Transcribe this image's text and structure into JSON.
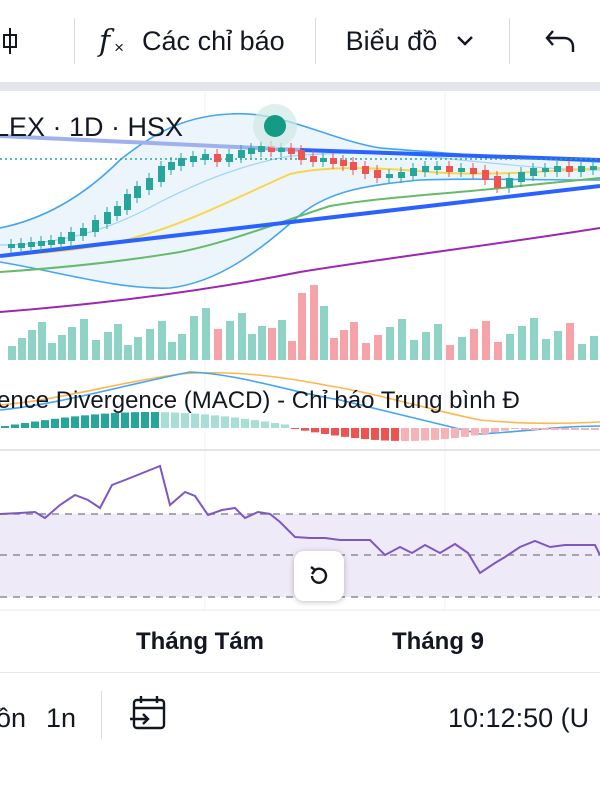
{
  "toolbar": {
    "indicators_label": "Các chỉ báo",
    "chart_type_label": "Biểu đồ"
  },
  "chart": {
    "symbol_title": "LEX · 1D · HSX",
    "macd_title": "ence Divergence (MACD) - Chỉ báo Trung bình Đ",
    "x_axis_labels": [
      "Tháng Tám",
      "Tháng 9"
    ],
    "colors": {
      "up": "#26a69a",
      "down": "#ef5350",
      "trendline": "#2962ff",
      "rsi_line": "#7e57c2",
      "rsi_band": "#efeaf8",
      "bollinger": "#2196f3"
    }
  },
  "bottom_bar": {
    "range_partial": "ồn",
    "range_1y": "1n",
    "clock": "10:12:50 (U"
  }
}
